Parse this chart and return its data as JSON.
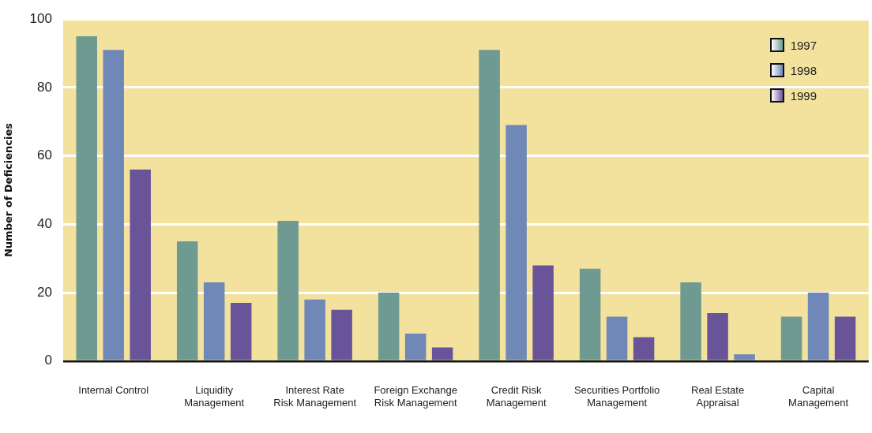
{
  "chart_data": {
    "type": "bar",
    "ylabel": "Number of Deficiencies",
    "categories": [
      "Internal Control",
      "Liquidity\nManagement",
      "Interest Rate\nRisk Management",
      "Foreign Exchange\nRisk Management",
      "Credit Risk\nManagement",
      "Securities Portfolio\nManagement",
      "Real Estate\nAppraisal",
      "Capital\nManagement"
    ],
    "series": [
      {
        "name": "1997",
        "color": "#6e9a92",
        "values": [
          95,
          35,
          41,
          20,
          91,
          27,
          23,
          13
        ]
      },
      {
        "name": "1998",
        "color": "#7088b8",
        "values": [
          91,
          23,
          18,
          8,
          69,
          13,
          14,
          20
        ],
        "colors": [
          "#7088b8",
          "#7088b8",
          "#7088b8",
          "#7088b8",
          "#7088b8",
          "#7088b8",
          "#6a5499",
          "#7088b8"
        ]
      },
      {
        "name": "1999",
        "color": "#6a5499",
        "values": [
          56,
          17,
          15,
          4,
          28,
          7,
          2,
          13
        ],
        "colors": [
          "#6a5499",
          "#6a5499",
          "#6a5499",
          "#6a5499",
          "#6a5499",
          "#6a5499",
          "#7088b8",
          "#6a5499"
        ]
      }
    ],
    "ylim": [
      0,
      100
    ],
    "yticks": [
      0,
      20,
      40,
      60,
      80,
      100
    ],
    "grid": "y",
    "legend": "top right"
  }
}
